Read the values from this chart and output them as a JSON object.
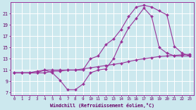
{
  "bg_color": "#cce8ee",
  "grid_color": "#ffffff",
  "line_color": "#993399",
  "xlabel": "Windchill (Refroidissement éolien,°C)",
  "xlim": [
    -0.5,
    23.5
  ],
  "ylim": [
    6.5,
    23.0
  ],
  "xticks": [
    0,
    1,
    2,
    3,
    4,
    5,
    6,
    7,
    8,
    9,
    10,
    11,
    12,
    13,
    14,
    15,
    16,
    17,
    18,
    19,
    20,
    21,
    22,
    23
  ],
  "yticks": [
    7,
    9,
    11,
    13,
    15,
    17,
    19,
    21
  ],
  "curve1_x": [
    0,
    1,
    2,
    3,
    4,
    5,
    6,
    7,
    8,
    9,
    10,
    11,
    12,
    13,
    14,
    15,
    16,
    17,
    18,
    19,
    20,
    21,
    22,
    23
  ],
  "curve1_y": [
    10.5,
    10.5,
    10.5,
    10.8,
    11.0,
    11.0,
    11.0,
    11.0,
    11.0,
    11.0,
    13.0,
    13.5,
    15.5,
    16.5,
    18.2,
    20.5,
    22.2,
    22.5,
    22.2,
    21.5,
    20.8,
    15.2,
    14.0,
    13.5
  ],
  "curve2_x": [
    0,
    1,
    2,
    3,
    4,
    5,
    6,
    7,
    8,
    9,
    10,
    11,
    12,
    13,
    14,
    15,
    16,
    17,
    18,
    19,
    20,
    21,
    22,
    23
  ],
  "curve2_y": [
    10.5,
    10.5,
    10.5,
    10.5,
    10.5,
    10.8,
    10.8,
    11.0,
    11.0,
    11.2,
    11.4,
    11.6,
    11.8,
    12.0,
    12.2,
    12.5,
    12.8,
    13.0,
    13.2,
    13.4,
    13.5,
    13.6,
    13.7,
    13.8
  ],
  "curve3_x": [
    0,
    1,
    2,
    3,
    4,
    5,
    6,
    7,
    8,
    9,
    10,
    11,
    12,
    13,
    14,
    15,
    16,
    17,
    18,
    19,
    20,
    21,
    22,
    23
  ],
  "curve3_y": [
    10.5,
    10.5,
    10.5,
    10.5,
    11.0,
    10.5,
    9.2,
    7.5,
    7.5,
    8.5,
    10.5,
    11.0,
    11.2,
    13.0,
    16.0,
    18.5,
    20.2,
    22.0,
    20.5,
    15.0,
    14.0,
    13.5,
    13.5,
    13.5
  ]
}
